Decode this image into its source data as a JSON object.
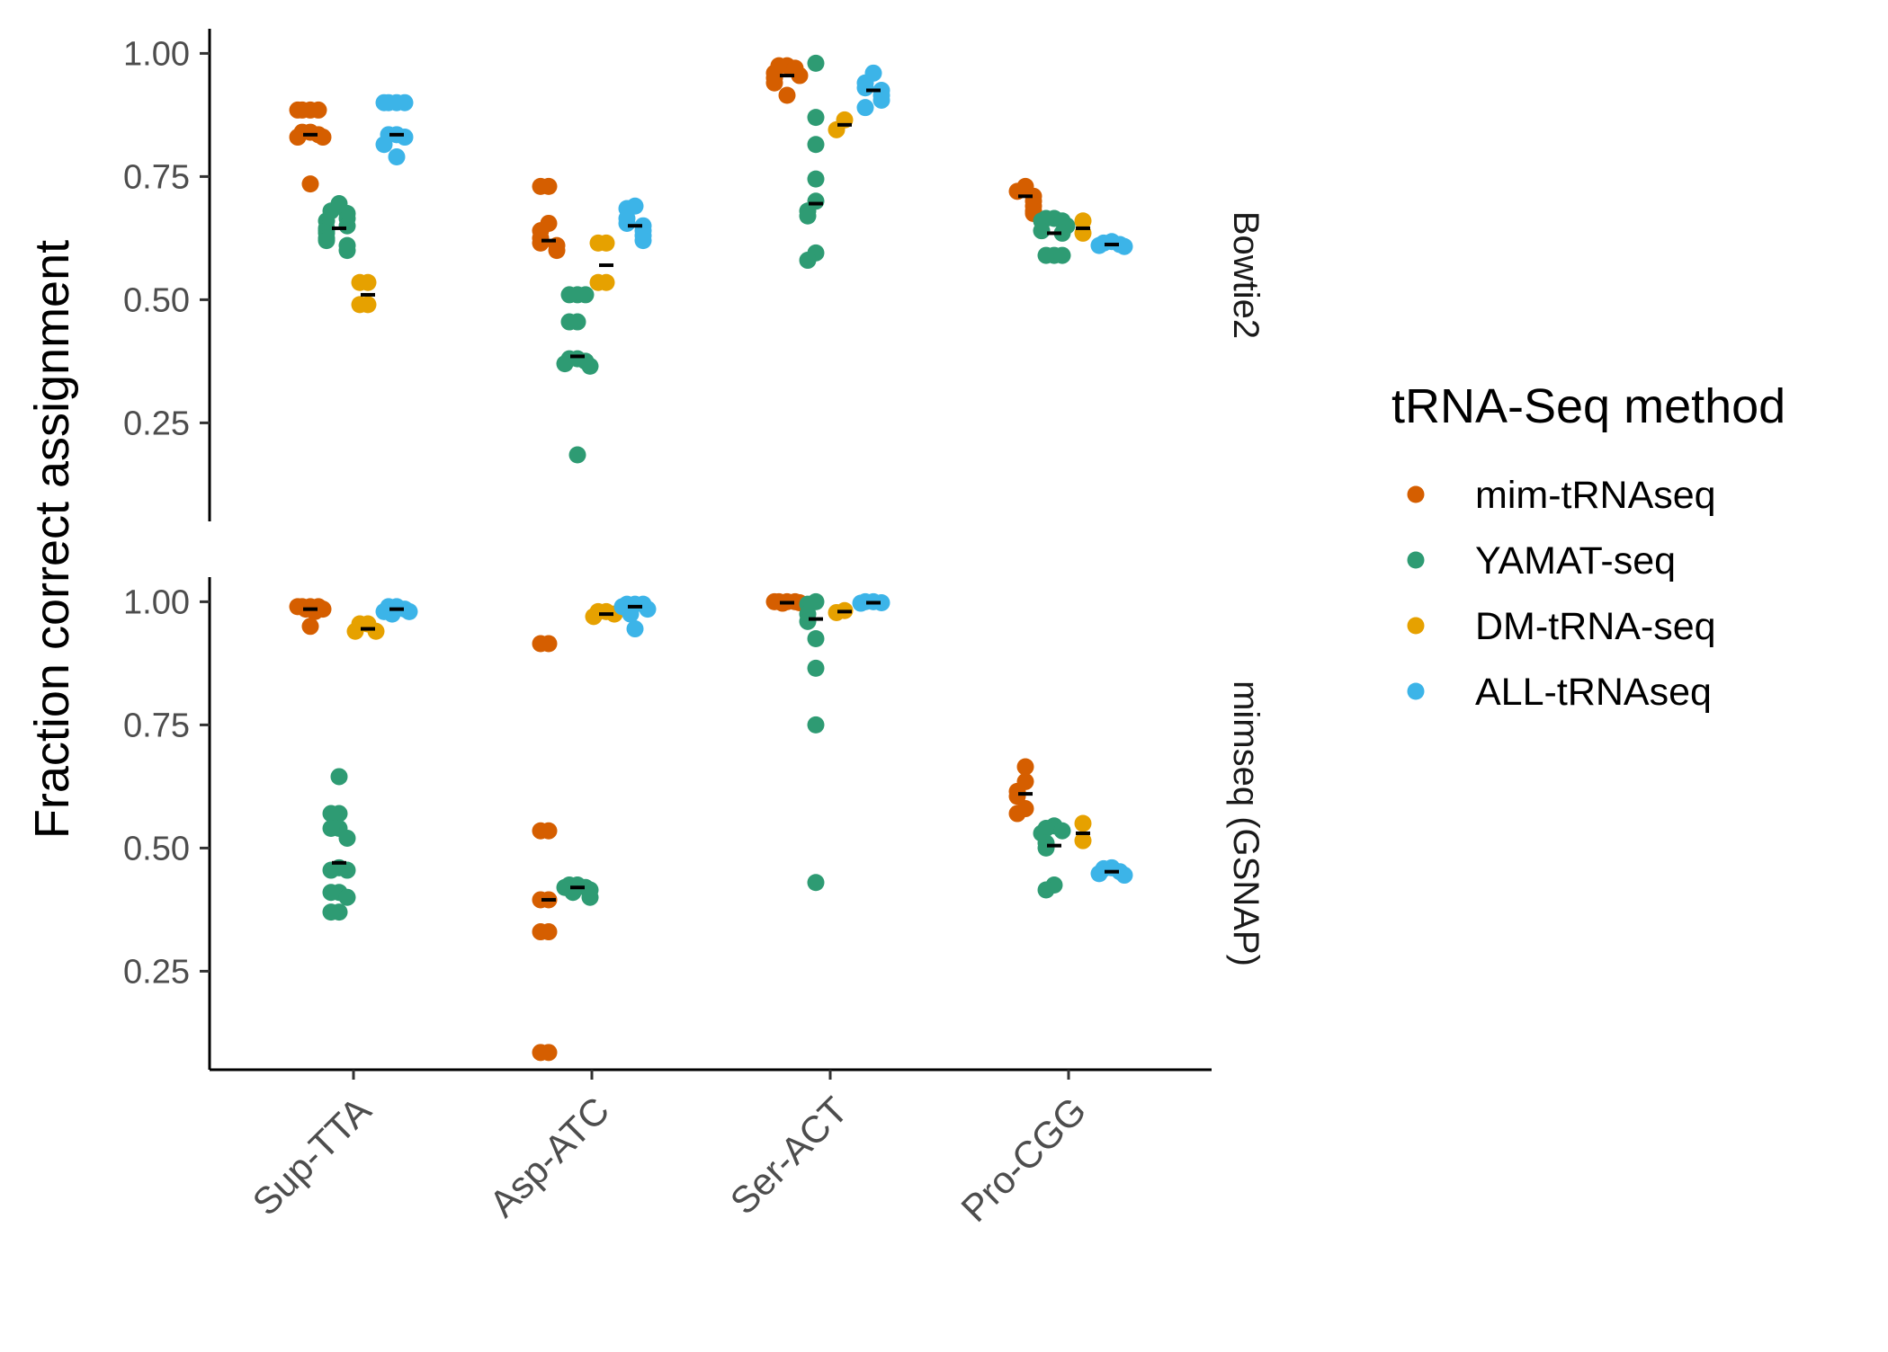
{
  "chart_data": {
    "type": "scatter",
    "title": "",
    "ylabel": "Fraction correct assignment",
    "xlabel": "",
    "categories": [
      "Sup-TTA",
      "Asp-ATC",
      "Ser-ACT",
      "Pro-CGG"
    ],
    "y_ticks": [
      "0.25",
      "0.50",
      "0.75",
      "1.00"
    ],
    "ylim": [
      0.05,
      1.05
    ],
    "grid": false,
    "legend": {
      "title": "tRNA-Seq method",
      "placement": "right",
      "entries": [
        {
          "name": "mim-tRNAseq",
          "color": "#D55E00"
        },
        {
          "name": "YAMAT-seq",
          "color": "#2E9B73"
        },
        {
          "name": "DM-tRNA-seq",
          "color": "#E6A100"
        },
        {
          "name": "ALL-tRNAseq",
          "color": "#3CB4E8"
        }
      ]
    },
    "panels": [
      {
        "strip": "Bowtie2",
        "groups": [
          {
            "category": "Sup-TTA",
            "method": "mim-tRNAseq",
            "mean": 0.835,
            "points": [
              0.885,
              0.885,
              0.885,
              0.885,
              0.84,
              0.84,
              0.835,
              0.83,
              0.83,
              0.735
            ]
          },
          {
            "category": "Sup-TTA",
            "method": "YAMAT-seq",
            "mean": 0.645,
            "points": [
              0.695,
              0.68,
              0.675,
              0.665,
              0.66,
              0.65,
              0.645,
              0.64,
              0.635,
              0.625,
              0.62,
              0.61,
              0.6
            ]
          },
          {
            "category": "Sup-TTA",
            "method": "DM-tRNA-seq",
            "mean": 0.51,
            "points": [
              0.535,
              0.535,
              0.49,
              0.49
            ]
          },
          {
            "category": "Sup-TTA",
            "method": "ALL-tRNAseq",
            "mean": 0.835,
            "points": [
              0.9,
              0.9,
              0.9,
              0.9,
              0.835,
              0.835,
              0.83,
              0.815,
              0.79
            ]
          },
          {
            "category": "Asp-ATC",
            "method": "mim-tRNAseq",
            "mean": 0.62,
            "points": [
              0.73,
              0.73,
              0.655,
              0.64,
              0.625,
              0.615,
              0.61,
              0.6
            ]
          },
          {
            "category": "Asp-ATC",
            "method": "YAMAT-seq",
            "mean": 0.385,
            "points": [
              0.51,
              0.51,
              0.51,
              0.455,
              0.455,
              0.38,
              0.38,
              0.375,
              0.37,
              0.365,
              0.185
            ]
          },
          {
            "category": "Asp-ATC",
            "method": "DM-tRNA-seq",
            "mean": 0.57,
            "points": [
              0.615,
              0.615,
              0.535,
              0.535
            ]
          },
          {
            "category": "Asp-ATC",
            "method": "ALL-tRNAseq",
            "mean": 0.65,
            "points": [
              0.69,
              0.685,
              0.665,
              0.655,
              0.65,
              0.64,
              0.63,
              0.62
            ]
          },
          {
            "category": "Ser-ACT",
            "method": "mim-tRNAseq",
            "mean": 0.955,
            "points": [
              0.975,
              0.975,
              0.97,
              0.96,
              0.955,
              0.95,
              0.94,
              0.915
            ]
          },
          {
            "category": "Ser-ACT",
            "method": "YAMAT-seq",
            "mean": 0.695,
            "points": [
              0.98,
              0.87,
              0.815,
              0.745,
              0.7,
              0.68,
              0.67,
              0.595,
              0.58
            ]
          },
          {
            "category": "Ser-ACT",
            "method": "DM-tRNA-seq",
            "mean": 0.855,
            "points": [
              0.865,
              0.845
            ]
          },
          {
            "category": "Ser-ACT",
            "method": "ALL-tRNAseq",
            "mean": 0.925,
            "points": [
              0.96,
              0.94,
              0.93,
              0.925,
              0.915,
              0.905,
              0.89
            ]
          },
          {
            "category": "Pro-CGG",
            "method": "mim-tRNAseq",
            "mean": 0.71,
            "points": [
              0.73,
              0.72,
              0.71,
              0.7,
              0.69,
              0.68,
              0.675
            ]
          },
          {
            "category": "Pro-CGG",
            "method": "YAMAT-seq",
            "mean": 0.635,
            "points": [
              0.665,
              0.665,
              0.66,
              0.66,
              0.65,
              0.64,
              0.635,
              0.59,
              0.59,
              0.59
            ]
          },
          {
            "category": "Pro-CGG",
            "method": "DM-tRNA-seq",
            "mean": 0.645,
            "points": [
              0.66,
              0.635
            ]
          },
          {
            "category": "Pro-CGG",
            "method": "ALL-tRNAseq",
            "mean": 0.612,
            "points": [
              0.618,
              0.615,
              0.612,
              0.61,
              0.608
            ]
          }
        ]
      },
      {
        "strip": "mimseq (GSNAP)",
        "groups": [
          {
            "category": "Sup-TTA",
            "method": "mim-tRNAseq",
            "mean": 0.985,
            "points": [
              0.99,
              0.99,
              0.99,
              0.99,
              0.985,
              0.985,
              0.98,
              0.95
            ]
          },
          {
            "category": "Sup-TTA",
            "method": "YAMAT-seq",
            "mean": 0.47,
            "points": [
              0.645,
              0.57,
              0.57,
              0.54,
              0.54,
              0.52,
              0.46,
              0.455,
              0.455,
              0.41,
              0.41,
              0.4,
              0.37,
              0.37
            ]
          },
          {
            "category": "Sup-TTA",
            "method": "DM-tRNA-seq",
            "mean": 0.945,
            "points": [
              0.955,
              0.955,
              0.94,
              0.94
            ]
          },
          {
            "category": "Sup-TTA",
            "method": "ALL-tRNAseq",
            "mean": 0.985,
            "points": [
              0.99,
              0.99,
              0.985,
              0.98,
              0.98,
              0.975
            ]
          },
          {
            "category": "Asp-ATC",
            "method": "mim-tRNAseq",
            "mean": 0.395,
            "points": [
              0.915,
              0.915,
              0.535,
              0.535,
              0.395,
              0.395,
              0.33,
              0.33,
              0.085,
              0.085
            ]
          },
          {
            "category": "Asp-ATC",
            "method": "YAMAT-seq",
            "mean": 0.42,
            "points": [
              0.425,
              0.425,
              0.42,
              0.42,
              0.415,
              0.41,
              0.4
            ]
          },
          {
            "category": "Asp-ATC",
            "method": "DM-tRNA-seq",
            "mean": 0.975,
            "points": [
              0.98,
              0.98,
              0.975,
              0.97
            ]
          },
          {
            "category": "Asp-ATC",
            "method": "ALL-tRNAseq",
            "mean": 0.99,
            "points": [
              0.995,
              0.995,
              0.995,
              0.99,
              0.985,
              0.975,
              0.945
            ]
          },
          {
            "category": "Ser-ACT",
            "method": "mim-tRNAseq",
            "mean": 0.998,
            "points": [
              1.0,
              1.0,
              1.0,
              1.0,
              0.998,
              0.997
            ]
          },
          {
            "category": "Ser-ACT",
            "method": "YAMAT-seq",
            "mean": 0.965,
            "points": [
              1.0,
              0.995,
              0.975,
              0.96,
              0.925,
              0.865,
              0.75,
              0.43
            ]
          },
          {
            "category": "Ser-ACT",
            "method": "DM-tRNA-seq",
            "mean": 0.98,
            "points": [
              0.982,
              0.978
            ]
          },
          {
            "category": "Ser-ACT",
            "method": "ALL-tRNAseq",
            "mean": 0.998,
            "points": [
              1.0,
              1.0,
              0.998,
              0.997
            ]
          },
          {
            "category": "Pro-CGG",
            "method": "mim-tRNAseq",
            "mean": 0.61,
            "points": [
              0.665,
              0.635,
              0.615,
              0.605,
              0.58,
              0.57
            ]
          },
          {
            "category": "Pro-CGG",
            "method": "YAMAT-seq",
            "mean": 0.505,
            "points": [
              0.545,
              0.54,
              0.535,
              0.53,
              0.51,
              0.5,
              0.425,
              0.415
            ]
          },
          {
            "category": "Pro-CGG",
            "method": "DM-tRNA-seq",
            "mean": 0.53,
            "points": [
              0.55,
              0.515
            ]
          },
          {
            "category": "Pro-CGG",
            "method": "ALL-tRNAseq",
            "mean": 0.452,
            "points": [
              0.46,
              0.458,
              0.452,
              0.448,
              0.445
            ]
          }
        ]
      }
    ]
  }
}
